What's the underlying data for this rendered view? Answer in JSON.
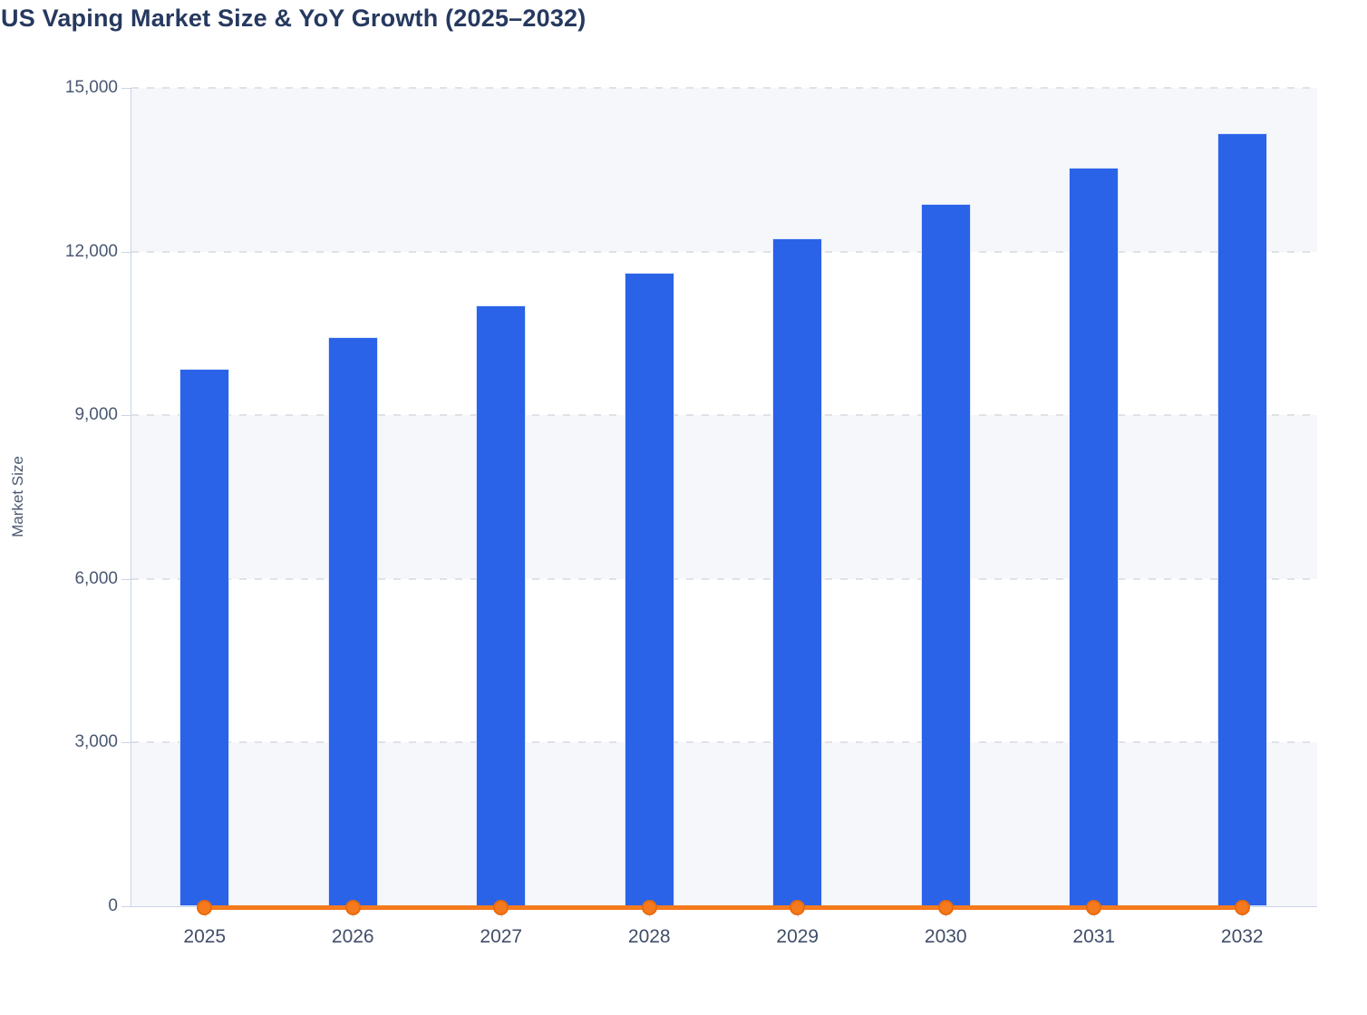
{
  "header": {
    "title": "US Vaping Market Size & YoY Growth (2025–2032)"
  },
  "chart_data": {
    "type": "bar",
    "title": "US Vaping Market Size & YoY Growth (2025–2032)",
    "xlabel": "",
    "ylabel": "Market Size",
    "categories": [
      "2025",
      "2026",
      "2027",
      "2028",
      "2029",
      "2030",
      "2031",
      "2032"
    ],
    "series": [
      {
        "name": "Market Size",
        "type": "bar",
        "color": "#2a63e8",
        "values": [
          9850,
          10430,
          11010,
          11610,
          12240,
          12870,
          13540,
          14170
        ]
      },
      {
        "name": "YoY Growth",
        "type": "line",
        "color": "#f5791d",
        "values": [
          0,
          0,
          0,
          0,
          0,
          0,
          0,
          0
        ],
        "note": "line renders flat at ~0 on the shared Market Size axis, with a round marker at every year"
      }
    ],
    "ylim": [
      0,
      15000
    ],
    "yticks": [
      0,
      3000,
      6000,
      9000,
      12000,
      15000
    ],
    "ytick_labels": [
      "0",
      "3,000",
      "6,000",
      "9,000",
      "12,000",
      "15,000"
    ],
    "grid": "dashed horizontal gridlines at every 3,000; alternating light plot bands between gridlines",
    "legend": "none"
  },
  "colors": {
    "bar_fill": "#2a63e8",
    "line_orange": "#f5791d",
    "marker_border": "#e96a0e",
    "band_light": "#f5f7fa",
    "gridline": "#dfe2e6",
    "axis_line": "#c9d4ea",
    "tick_text": "#4a5870",
    "title_text": "#26395f",
    "background": "#ffffff"
  }
}
